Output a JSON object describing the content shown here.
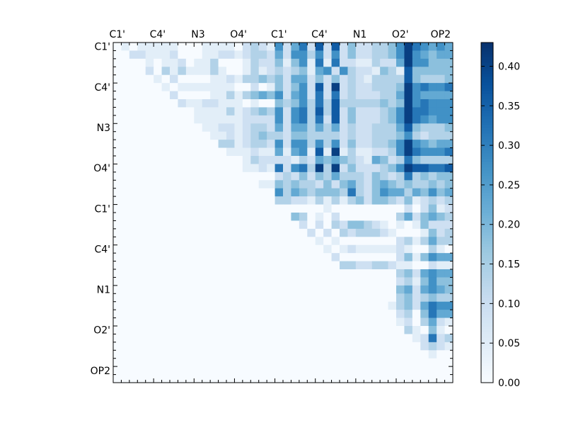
{
  "chart_data": {
    "type": "heatmap",
    "title": "",
    "xlabel": "",
    "ylabel": "",
    "x_tick_labels": [
      "C1'",
      "C4'",
      "N3",
      "O4'",
      "C1'",
      "C4'",
      "N1",
      "O2'",
      "OP2"
    ],
    "y_tick_labels": [
      "C1'",
      "C4'",
      "N3",
      "O4'",
      "C1'",
      "C4'",
      "N1",
      "O2'",
      "OP2"
    ],
    "tick_every_n_cells": 5,
    "n_rows": 42,
    "n_cols": 42,
    "value_encoding": "each digit = level; value = level * 0.045",
    "value_step": 0.045,
    "rows": [
      "010111110001111023216257282824223346976565",
      "002211120001122123325266362624223346965455",
      "000010112011300013224146171722113225966444",
      "000020313111310013123234156263221431844444",
      "000001020000112133434255242423213333843334",
      "000000101111111002014246282923223334967667",
      "000000020000113134546256272723222335965555",
      "000000002112211101004346373833333434967666",
      "000000000011113123436267383824222346977666",
      "000000000011111122226267372824222346976566",
      "000000000001122123325255353523223335843334",
      "000000000000112123433244333323223334632333",
      "000000000000033123326266363624223346965455",
      "000000000000001112115156181913112236976667",
      "000000000000000013222213254543215423743333",
      "000000000000000011217267393924222346988778",
      "000000000000000000002324243533324323734344",
      "000000000000000000114343324245324543433434",
      "000000000000000000006354344437324655354645",
      "000000000000000000003322131313424432412323",
      "000000000000000000000000001000000000202412",
      "000000000000000000000043010200000003524543",
      "000000000000000000000002020324432101014222",
      "000000000000000000000000202032333210001423",
      "000000000000000000000000010100000002313533",
      "000000000000000000000000001012111112100310",
      "000000000000000000000000000200000002414655",
      "000000000000000000000000000033223321100211",
      "000000000000000000000000000000000003425655",
      "000000000000000000000000000000000002314644",
      "000000000000000000000000000000000004525654",
      "000000000000000000000000000000000003423433",
      "000000000000000000000000000000000013425766",
      "000000000000000000000000000000000002304755",
      "000000000000000000000000000000000001203521",
      "000000000000000000000000000000000000310410",
      "000000000000000000000000000000000000012723",
      "000000000000000000000000000000000000002321",
      "000000000000000000000000000000000000000100",
      "000000000000000000000000000000000000000000",
      "000000000000000000000000000000000000000000",
      "000000000000000000000000000000000000000000"
    ],
    "colormap": "Blues",
    "vmin": 0.0,
    "vmax": 0.43,
    "colorbar": {
      "ticks": [
        0.0,
        0.05,
        0.1,
        0.15,
        0.2,
        0.25,
        0.3,
        0.35,
        0.4
      ],
      "tick_labels": [
        "0.00",
        "0.05",
        "0.10",
        "0.15",
        "0.20",
        "0.25",
        "0.30",
        "0.35",
        "0.40"
      ]
    },
    "grid": false,
    "legend": "colorbar-right"
  }
}
